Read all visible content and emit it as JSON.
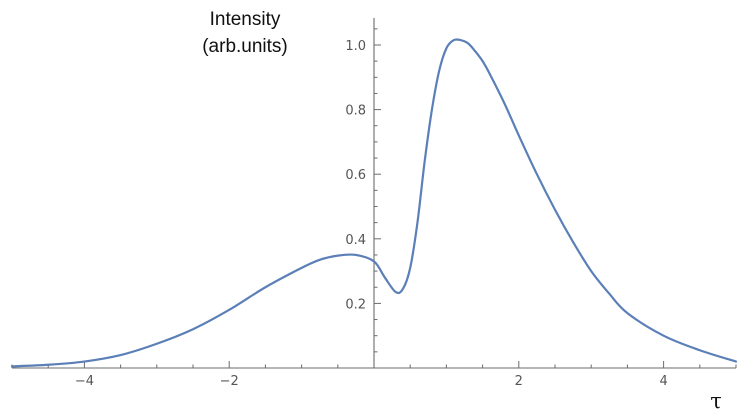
{
  "chart_data": {
    "type": "line",
    "title": "",
    "ylabel_lines": [
      "Intensity",
      "(arb.units)"
    ],
    "xlabel": "τ",
    "xlim": [
      -5,
      5
    ],
    "ylim": [
      0,
      1.05
    ],
    "x_ticks": [
      -4,
      -2,
      2,
      4
    ],
    "y_ticks": [
      0.2,
      0.4,
      0.6,
      0.8,
      1.0
    ],
    "x_tick_labels": [
      "−4",
      "−2",
      "2",
      "4"
    ],
    "y_tick_labels": [
      "0.2",
      "0.4",
      "0.6",
      "0.8",
      "1.0"
    ],
    "grid": false,
    "line_color": "#5b7fb7",
    "series": [
      {
        "x": [
          -5,
          -4.5,
          -4,
          -3.5,
          -3,
          -2.5,
          -2,
          -1.5,
          -1,
          -0.75,
          -0.5,
          -0.25,
          0,
          0.15,
          0.3,
          0.4,
          0.5,
          0.6,
          0.7,
          0.8,
          0.9,
          1.0,
          1.1,
          1.2,
          1.3,
          1.4,
          1.5,
          1.6,
          1.8,
          2,
          2.25,
          2.5,
          2.75,
          3,
          3.25,
          3.5,
          4,
          4.5,
          5
        ],
        "y": [
          0.005,
          0.01,
          0.02,
          0.04,
          0.075,
          0.12,
          0.18,
          0.25,
          0.31,
          0.335,
          0.348,
          0.35,
          0.33,
          0.28,
          0.235,
          0.245,
          0.31,
          0.45,
          0.64,
          0.8,
          0.92,
          0.99,
          1.015,
          1.015,
          1.005,
          0.98,
          0.95,
          0.91,
          0.82,
          0.72,
          0.6,
          0.49,
          0.39,
          0.3,
          0.23,
          0.17,
          0.1,
          0.055,
          0.02
        ]
      }
    ]
  }
}
